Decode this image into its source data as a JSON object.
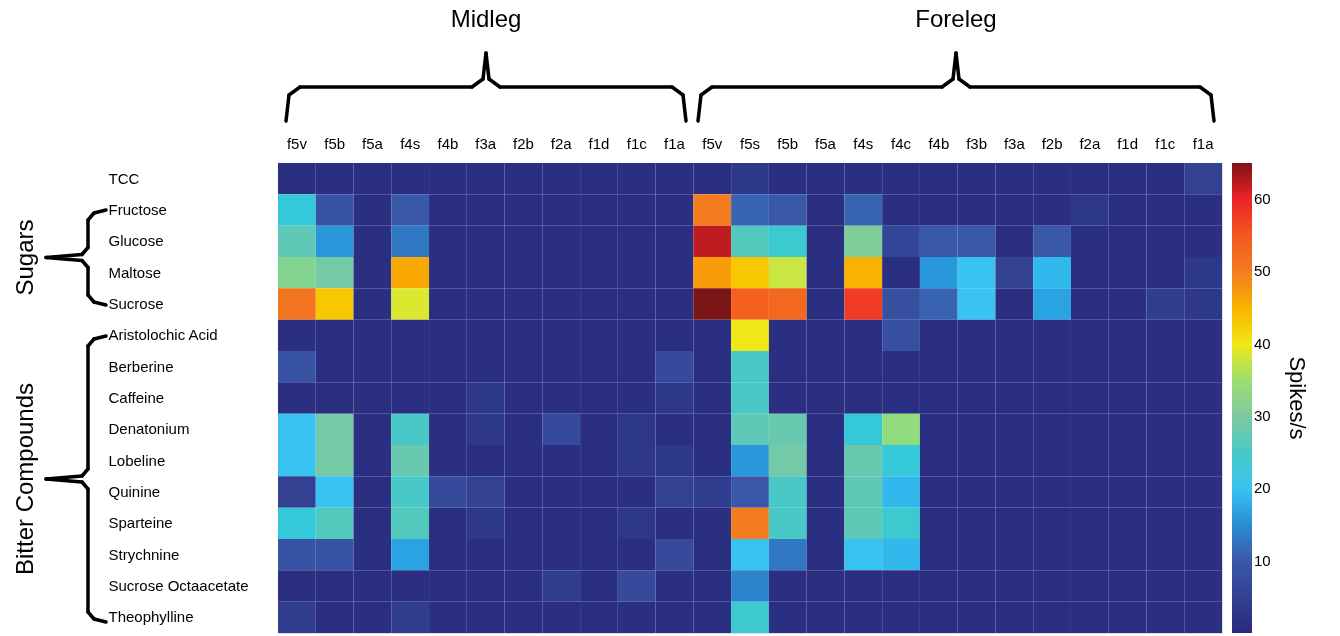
{
  "chart_data": {
    "type": "heatmap",
    "categories": [
      "f5v",
      "f5b",
      "f5a",
      "f4s",
      "f4b",
      "f3a",
      "f2b",
      "f2a",
      "f1d",
      "f1c",
      "f1a",
      "f5v",
      "f5s",
      "f5b",
      "f5a",
      "f4s",
      "f4c",
      "f4b",
      "f3b",
      "f3a",
      "f2b",
      "f2a",
      "f1d",
      "f1c",
      "f1a"
    ],
    "y_categories": [
      "TCC",
      "Fructose",
      "Glucose",
      "Maltose",
      "Sucrose",
      "Aristolochic Acid",
      "Berberine",
      "Caffeine",
      "Denatonium",
      "Lobeline",
      "Quinine",
      "Sparteine",
      "Strychnine",
      "Sucrose Octaacetate",
      "Theophylline"
    ],
    "cells": [
      [
        1,
        1,
        1,
        1,
        1,
        1,
        1,
        1,
        1,
        1,
        1,
        1,
        3,
        1,
        1,
        1,
        1,
        1,
        1,
        1,
        1,
        1,
        1,
        1,
        5
      ],
      [
        23,
        9,
        1,
        10,
        1,
        1,
        1,
        1,
        1,
        1,
        1,
        50,
        11,
        10,
        1,
        11,
        1,
        1,
        1,
        1,
        1,
        3,
        1,
        1,
        1
      ],
      [
        27,
        16,
        1,
        13,
        1,
        1,
        1,
        1,
        1,
        1,
        1,
        62,
        26,
        24,
        1,
        31,
        6,
        10,
        10,
        1,
        10,
        1,
        1,
        1,
        1
      ],
      [
        32,
        29,
        1,
        46,
        1,
        1,
        1,
        1,
        1,
        1,
        1,
        47,
        43,
        38,
        1,
        45,
        1,
        16,
        20,
        5,
        19,
        1,
        1,
        1,
        3
      ],
      [
        51,
        43,
        1,
        39,
        1,
        1,
        1,
        1,
        1,
        1,
        1,
        65,
        54,
        53,
        1,
        58,
        8,
        11,
        20,
        1,
        17,
        1,
        1,
        4,
        3
      ],
      [
        1,
        1,
        1,
        1,
        1,
        1,
        1,
        1,
        1,
        1,
        1,
        1,
        40,
        1,
        1,
        1,
        8,
        1,
        1,
        1,
        1,
        1,
        1,
        1,
        1
      ],
      [
        9,
        1,
        1,
        1,
        1,
        1,
        1,
        1,
        1,
        1,
        7,
        1,
        25,
        1,
        1,
        1,
        1,
        1,
        1,
        1,
        1,
        1,
        1,
        1,
        1
      ],
      [
        1,
        1,
        1,
        1,
        1,
        3,
        1,
        1,
        1,
        1,
        3,
        1,
        25,
        1,
        1,
        1,
        1,
        1,
        1,
        1,
        1,
        1,
        1,
        1,
        1
      ],
      [
        20,
        29,
        1,
        25,
        1,
        3,
        1,
        7,
        1,
        3,
        1,
        1,
        27,
        28,
        1,
        23,
        34,
        1,
        1,
        1,
        1,
        1,
        1,
        1,
        1
      ],
      [
        20,
        29,
        1,
        28,
        1,
        1,
        1,
        1,
        1,
        3,
        3,
        1,
        16,
        29,
        1,
        28,
        23,
        1,
        1,
        1,
        1,
        1,
        1,
        1,
        1
      ],
      [
        5,
        20,
        1,
        25,
        7,
        5,
        1,
        1,
        1,
        1,
        5,
        4,
        10,
        25,
        1,
        27,
        19,
        1,
        1,
        1,
        1,
        1,
        1,
        1,
        1
      ],
      [
        23,
        26,
        1,
        26,
        1,
        3,
        1,
        1,
        1,
        3,
        1,
        1,
        50,
        25,
        1,
        27,
        24,
        1,
        1,
        1,
        1,
        1,
        1,
        1,
        1
      ],
      [
        9,
        9,
        1,
        17,
        1,
        1,
        1,
        1,
        1,
        1,
        7,
        1,
        20,
        13,
        1,
        20,
        19,
        1,
        1,
        1,
        1,
        1,
        1,
        1,
        1
      ],
      [
        1,
        1,
        1,
        1,
        1,
        1,
        1,
        4,
        1,
        7,
        1,
        1,
        14,
        1,
        1,
        1,
        1,
        1,
        1,
        1,
        1,
        1,
        1,
        1,
        1
      ],
      [
        4,
        1,
        1,
        4,
        1,
        1,
        1,
        1,
        1,
        1,
        1,
        1,
        24,
        1,
        1,
        1,
        1,
        1,
        1,
        1,
        1,
        1,
        1,
        1,
        1
      ]
    ],
    "clim": [
      0,
      65
    ],
    "cticks": [
      10,
      20,
      30,
      40,
      50,
      60
    ],
    "clabel": "Spikes/s",
    "annotations": [
      "Midleg",
      "Foreleg",
      "Sugars",
      "Bitter Compounds"
    ]
  }
}
